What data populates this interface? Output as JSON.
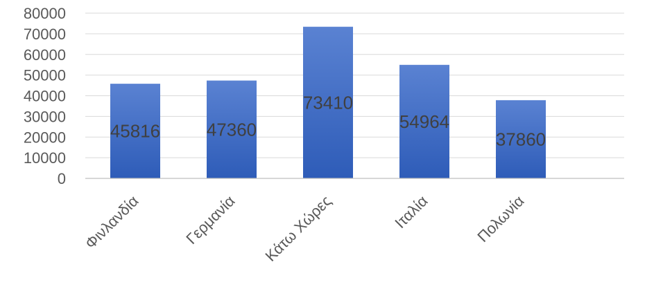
{
  "chart_data": {
    "type": "bar",
    "title": "",
    "xlabel": "",
    "ylabel": "",
    "categories": [
      "Φινλανδία",
      "Γερμανία",
      "Κάτω Χώρες",
      "Ιταλία",
      "Πολωνία"
    ],
    "values": [
      45816,
      47360,
      73410,
      54964,
      37860
    ],
    "data_labels": [
      "45816",
      "47360",
      "73410",
      "54964",
      "37860"
    ],
    "ylim": [
      0,
      80000
    ],
    "yticks": [
      0,
      10000,
      20000,
      30000,
      40000,
      50000,
      60000,
      70000,
      80000
    ],
    "ytick_labels": [
      "0",
      "10000",
      "20000",
      "30000",
      "40000",
      "50000",
      "60000",
      "70000",
      "80000"
    ],
    "grid": true,
    "legend": "none",
    "colors": {
      "bar_top": "#5a82d2",
      "bar_bottom": "#2e5cb8",
      "grid": "#d9d9d9",
      "text": "#595959",
      "data_label": "#404040"
    }
  }
}
